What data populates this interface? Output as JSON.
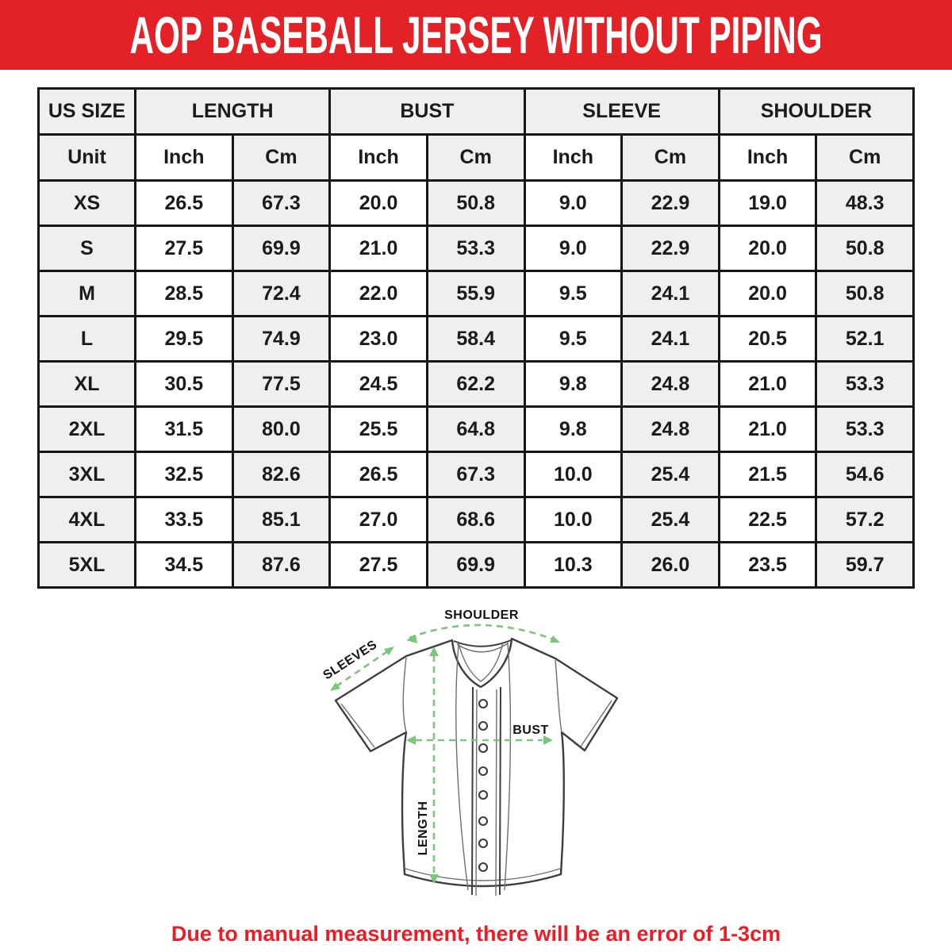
{
  "header": {
    "title": "AOP BASEBALL JERSEY WITHOUT PIPING"
  },
  "colors": {
    "banner_red": "#e32227",
    "note_red": "#ed1c24",
    "arrow_green": "#7cc57c",
    "outline_gray": "#3e3e3e",
    "shade_gray": "#efefef",
    "border_black": "#161616"
  },
  "table": {
    "groups": [
      {
        "label": "US SIZE",
        "colspan": 1
      },
      {
        "label": "LENGTH",
        "colspan": 2
      },
      {
        "label": "BUST",
        "colspan": 2
      },
      {
        "label": "SLEEVE",
        "colspan": 2
      },
      {
        "label": "SHOULDER",
        "colspan": 2
      }
    ],
    "unit_row": [
      "Unit",
      "Inch",
      "Cm",
      "Inch",
      "Cm",
      "Inch",
      "Cm",
      "Inch",
      "Cm"
    ],
    "rows": [
      {
        "size": "XS",
        "values": [
          "26.5",
          "67.3",
          "20.0",
          "50.8",
          "9.0",
          "22.9",
          "19.0",
          "48.3"
        ]
      },
      {
        "size": "S",
        "values": [
          "27.5",
          "69.9",
          "21.0",
          "53.3",
          "9.0",
          "22.9",
          "20.0",
          "50.8"
        ]
      },
      {
        "size": "M",
        "values": [
          "28.5",
          "72.4",
          "22.0",
          "55.9",
          "9.5",
          "24.1",
          "20.0",
          "50.8"
        ]
      },
      {
        "size": "L",
        "values": [
          "29.5",
          "74.9",
          "23.0",
          "58.4",
          "9.5",
          "24.1",
          "20.5",
          "52.1"
        ]
      },
      {
        "size": "XL",
        "values": [
          "30.5",
          "77.5",
          "24.5",
          "62.2",
          "9.8",
          "24.8",
          "21.0",
          "53.3"
        ]
      },
      {
        "size": "2XL",
        "values": [
          "31.5",
          "80.0",
          "25.5",
          "64.8",
          "9.8",
          "24.8",
          "21.0",
          "53.3"
        ]
      },
      {
        "size": "3XL",
        "values": [
          "32.5",
          "82.6",
          "26.5",
          "67.3",
          "10.0",
          "25.4",
          "21.5",
          "54.6"
        ]
      },
      {
        "size": "4XL",
        "values": [
          "33.5",
          "85.1",
          "27.0",
          "68.6",
          "10.0",
          "25.4",
          "22.5",
          "57.2"
        ]
      },
      {
        "size": "5XL",
        "values": [
          "34.5",
          "87.6",
          "27.5",
          "69.9",
          "10.3",
          "26.0",
          "23.5",
          "59.7"
        ]
      }
    ]
  },
  "diagram": {
    "labels": {
      "shoulder": "SHOULDER",
      "sleeves": "SLEEVES",
      "bust": "BUST",
      "length": "LENGTH"
    }
  },
  "footer": {
    "note": "Due to manual measurement, there will be an error of 1-3cm"
  }
}
